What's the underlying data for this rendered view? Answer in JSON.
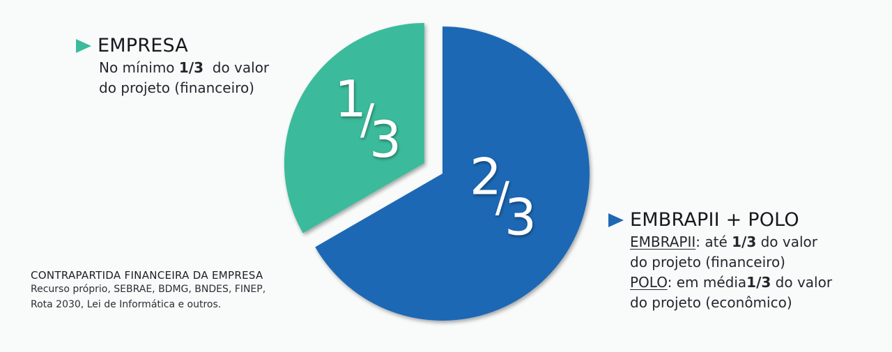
{
  "chart_data": {
    "type": "pie",
    "slices": [
      {
        "label_num": "1",
        "label_den": "3",
        "value": 0.3333,
        "color": "#3bbb9b",
        "exploded": true
      },
      {
        "label_num": "2",
        "label_den": "3",
        "value": 0.6667,
        "color": "#1d67b4",
        "exploded": false
      }
    ]
  },
  "colors": {
    "empresa_icon": "#3bbb9b",
    "embrapii_icon": "#1d67b4"
  },
  "empresa": {
    "title": "EMPRESA",
    "line1_pre": "No mínimo ",
    "line1_bold": "1/3",
    "line1_post": "  do valor",
    "line2": "do projeto (financeiro)"
  },
  "embrapii": {
    "title": "EMBRAPII + POLO",
    "l1_u": "EMBRAPII",
    "l1_mid": ": até ",
    "l1_bold": "1/3",
    "l1_post": " do valor",
    "l2": "do projeto (financeiro)",
    "l3_u": "POLO",
    "l3_mid": ": em média",
    "l3_bold": "1/3",
    "l3_post": " do valor",
    "l4": "do projeto (econômico)"
  },
  "contrapartida": {
    "title": "CONTRAPARTIDA FINANCEIRA DA EMPRESA",
    "line1": "Recurso próprio, SEBRAE, BDMG, BNDES, FINEP,",
    "line2": "Rota 2030, Lei de Informática e outros."
  }
}
